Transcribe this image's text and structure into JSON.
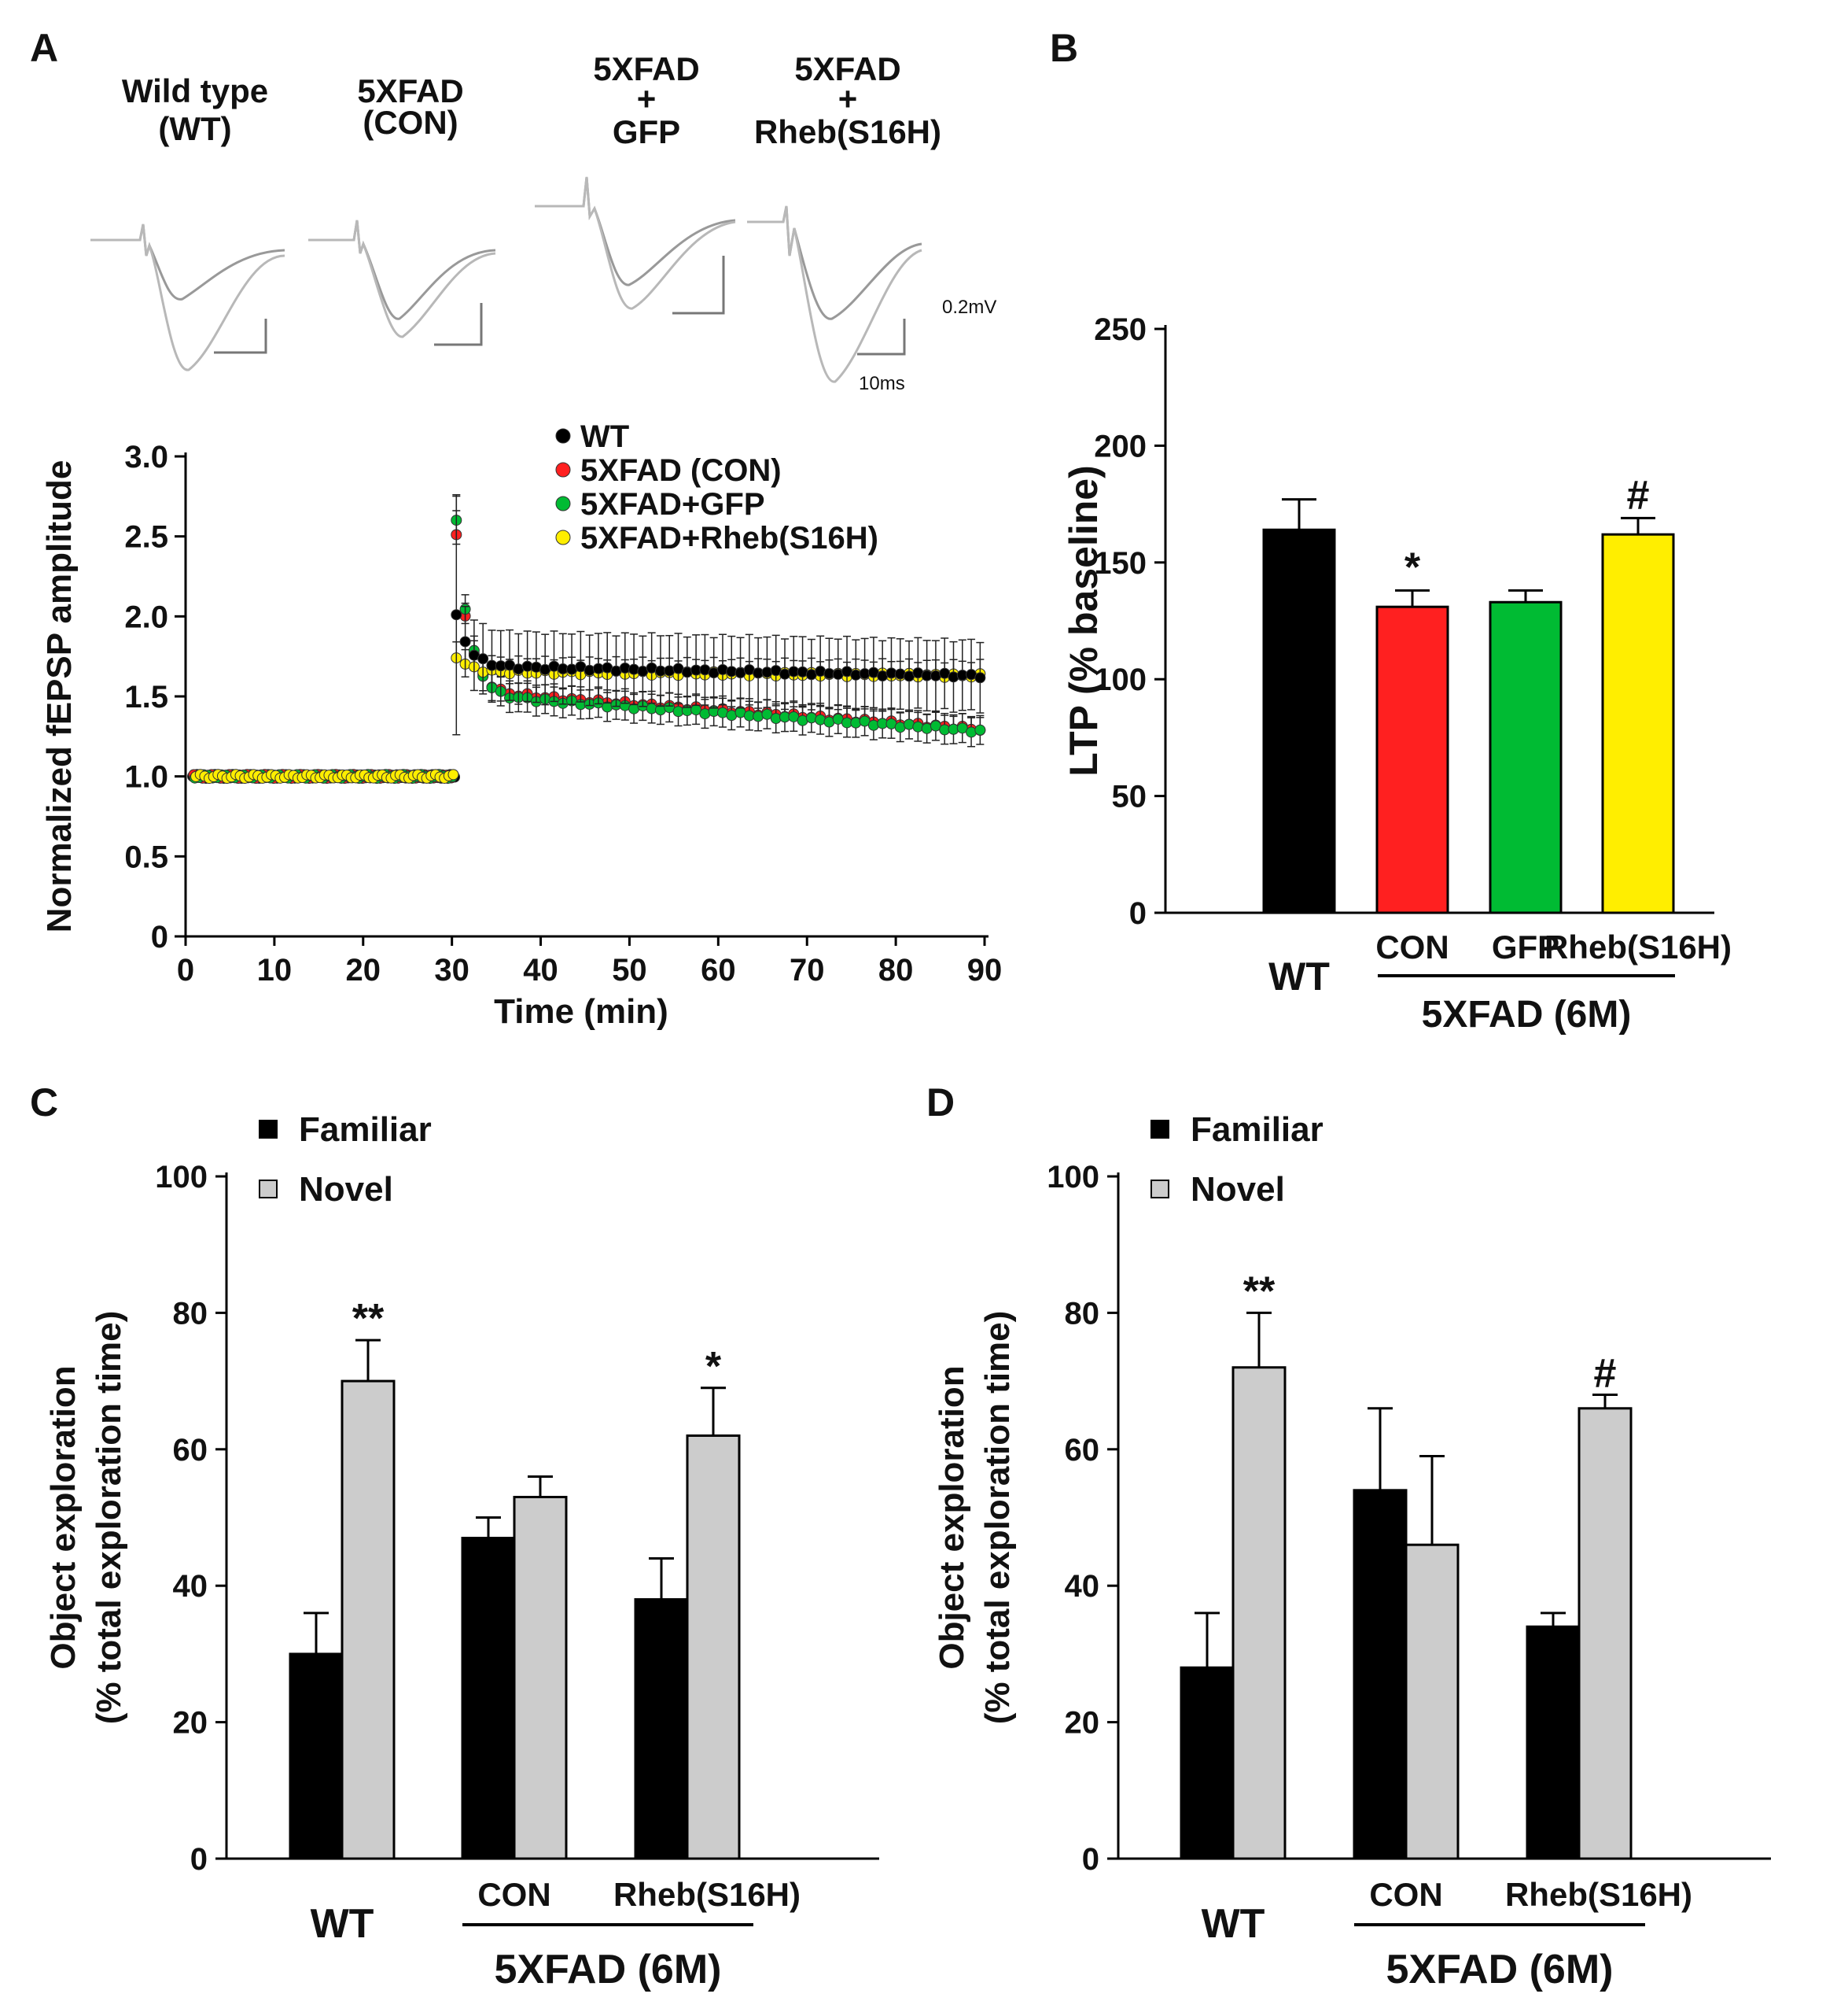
{
  "panel_labels": {
    "a": "A",
    "b": "B",
    "c": "C",
    "d": "D"
  },
  "colors": {
    "wt": "#000000",
    "con": "#ff2020",
    "gfp": "#00bb33",
    "rheb": "#ffee00",
    "familiar": "#000000",
    "novel": "#cccccc",
    "trace": "#999999"
  },
  "traces": {
    "groups": [
      {
        "line1": "Wild type",
        "line2": "(WT)",
        "line3": ""
      },
      {
        "line1": "5XFAD",
        "line2": "(CON)",
        "line3": ""
      },
      {
        "line1": "5XFAD",
        "line2": "+",
        "line3": "GFP"
      },
      {
        "line1": "5XFAD",
        "line2": "+",
        "line3": "Rheb(S16H)"
      }
    ],
    "scale_voltage": "0.2mV",
    "scale_time": "10ms"
  },
  "chart_data": [
    {
      "id": "A",
      "type": "scatter",
      "title": "",
      "xlabel": "Time (min)",
      "ylabel": "Normalized fEPSP amplitude",
      "xlim": [
        0,
        90
      ],
      "ylim": [
        0,
        3.0
      ],
      "xticks": [
        "0",
        "10",
        "20",
        "30",
        "40",
        "50",
        "60",
        "70",
        "80",
        "90"
      ],
      "yticks": [
        "0",
        "0.5",
        "1.0",
        "1.5",
        "2.0",
        "2.5",
        "3.0"
      ],
      "legend": [
        "WT",
        "5XFAD (CON)",
        "5XFAD+GFP",
        "5XFAD+Rheb(S16H)"
      ],
      "legend_position": "top-right",
      "baseline": {
        "x_start": 0,
        "x_end": 29.5,
        "step": 0.5,
        "y": 1.0
      },
      "post": {
        "x_start": 30.5,
        "x_end": 90,
        "step": 1,
        "tau": 8
      },
      "series": [
        {
          "name": "WT",
          "peak": 2.0,
          "plateau": 1.68,
          "plateau_end": 1.63,
          "err": 0.22,
          "peak_err": 0.75
        },
        {
          "name": "5XFAD (CON)",
          "peak": 2.5,
          "plateau": 1.5,
          "plateau_end": 1.3,
          "err": 0.08,
          "peak_err": 0.15
        },
        {
          "name": "5XFAD+GFP",
          "peak": 2.6,
          "plateau": 1.48,
          "plateau_end": 1.29,
          "err": 0.09,
          "peak_err": 0.15
        },
        {
          "name": "5XFAD+Rheb(S16H)",
          "peak": 1.75,
          "plateau": 1.65,
          "plateau_end": 1.63,
          "err": 0.09,
          "peak_err": 0.1
        }
      ]
    },
    {
      "id": "B",
      "type": "bar",
      "ylabel": "LTP (% baseline)",
      "ylim": [
        0,
        250
      ],
      "yticks": [
        "0",
        "50",
        "100",
        "150",
        "200",
        "250"
      ],
      "categories": [
        "WT",
        "CON",
        "GFP",
        "Rheb(S16H)"
      ],
      "values": [
        164,
        131,
        133,
        162
      ],
      "errors": [
        13,
        7,
        5,
        7
      ],
      "annotations": [
        "",
        "*",
        "",
        "#"
      ],
      "group_label": "5XFAD (6M)"
    },
    {
      "id": "C",
      "type": "bar",
      "ylabel": "Object exploration",
      "ylabel2": "(% total exploration time)",
      "ylim": [
        0,
        100
      ],
      "yticks": [
        "0",
        "20",
        "40",
        "60",
        "80",
        "100"
      ],
      "legend": [
        "Familiar",
        "Novel"
      ],
      "categories": [
        "WT",
        "CON",
        "Rheb(S16H)"
      ],
      "series": [
        {
          "name": "Familiar",
          "values": [
            30,
            47,
            38
          ],
          "errors": [
            6,
            3,
            6
          ]
        },
        {
          "name": "Novel",
          "values": [
            70,
            53,
            62
          ],
          "errors": [
            6,
            3,
            7
          ]
        }
      ],
      "annotations": [
        "**",
        "",
        "*"
      ],
      "group_label": "5XFAD (6M)"
    },
    {
      "id": "D",
      "type": "bar",
      "ylabel": "Object exploration",
      "ylabel2": "(% total exploration time)",
      "ylim": [
        0,
        100
      ],
      "yticks": [
        "0",
        "20",
        "40",
        "60",
        "80",
        "100"
      ],
      "legend": [
        "Familiar",
        "Novel"
      ],
      "categories": [
        "WT",
        "CON",
        "Rheb(S16H)"
      ],
      "series": [
        {
          "name": "Familiar",
          "values": [
            28,
            54,
            34
          ],
          "errors": [
            8,
            12,
            2
          ]
        },
        {
          "name": "Novel",
          "values": [
            72,
            46,
            66
          ],
          "errors": [
            8,
            13,
            2
          ]
        }
      ],
      "annotations": [
        "**",
        "",
        "#"
      ],
      "group_label": "5XFAD (6M)"
    }
  ]
}
